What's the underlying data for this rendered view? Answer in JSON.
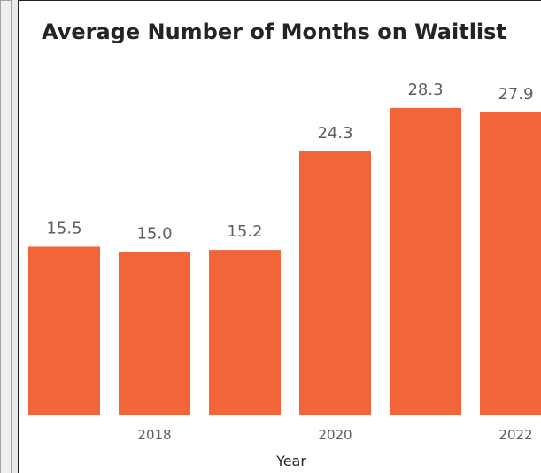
{
  "chart_data": {
    "type": "bar",
    "title": "Average Number of Months on Waitlist",
    "x_label": "Year",
    "categories": [
      null,
      "2018",
      null,
      "2020",
      null,
      "2022"
    ],
    "values": [
      15.5,
      15.0,
      15.2,
      24.3,
      28.3,
      27.9
    ],
    "value_labels": [
      "15.5",
      "15.0",
      "15.2",
      "24.3",
      "28.3",
      "27.9"
    ],
    "color": "#f26539"
  }
}
